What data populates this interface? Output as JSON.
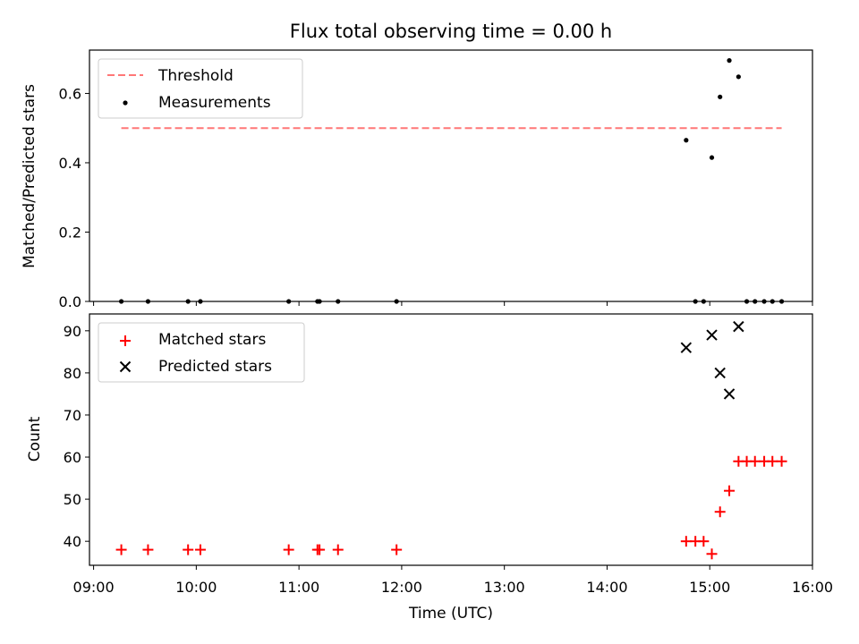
{
  "chart_data": {
    "type": "scatter",
    "title": "Flux total observing time = 0.00 h",
    "xlabel": "Time (UTC)",
    "x_ticks": [
      "09:00",
      "10:00",
      "11:00",
      "12:00",
      "13:00",
      "14:00",
      "15:00",
      "16:00"
    ],
    "x_range_hours": [
      8.96,
      16.0
    ],
    "panels": [
      {
        "ylabel": "Matched/Predicted stars",
        "ylim": [
          0.0,
          0.725
        ],
        "y_ticks": [
          "0.0",
          "0.2",
          "0.4",
          "0.6"
        ],
        "legend_position": "upper left",
        "threshold": {
          "name": "Threshold",
          "value": 0.5,
          "x_range": [
            9.27,
            15.7
          ],
          "color": "#ff7777"
        },
        "series": [
          {
            "name": "Measurements",
            "marker": "dot",
            "color": "#000000",
            "x": [
              9.27,
              9.53,
              9.92,
              10.04,
              10.9,
              11.18,
              11.2,
              11.38,
              11.95,
              14.77,
              14.86,
              14.94,
              15.02,
              15.1,
              15.19,
              15.28,
              15.36,
              15.44,
              15.53,
              15.61,
              15.7
            ],
            "y": [
              0.0,
              0.0,
              0.0,
              0.0,
              0.0,
              0.0,
              0.0,
              0.0,
              0.0,
              0.465,
              0.0,
              0.0,
              0.415,
              0.59,
              0.695,
              0.648,
              0.0,
              0.0,
              0.0,
              0.0,
              0.0
            ]
          }
        ]
      },
      {
        "ylabel": "Count",
        "ylim": [
          34.3,
          94.0
        ],
        "y_ticks": [
          "40",
          "50",
          "60",
          "70",
          "80",
          "90"
        ],
        "legend_position": "upper left",
        "series": [
          {
            "name": "Matched stars",
            "marker": "plus",
            "color": "#ff0000",
            "x": [
              9.27,
              9.53,
              9.92,
              10.04,
              10.9,
              11.18,
              11.2,
              11.38,
              11.95,
              14.77,
              14.86,
              14.94,
              15.02,
              15.1,
              15.19,
              15.28,
              15.36,
              15.44,
              15.53,
              15.61,
              15.7
            ],
            "y": [
              38,
              38,
              38,
              38,
              38,
              38,
              38,
              38,
              38,
              40,
              40,
              40,
              37,
              47,
              52,
              59,
              59,
              59,
              59,
              59,
              59
            ]
          },
          {
            "name": "Predicted stars",
            "marker": "x",
            "color": "#000000",
            "x": [
              14.77,
              15.02,
              15.1,
              15.19,
              15.28
            ],
            "y": [
              86,
              89,
              80,
              75,
              91
            ]
          }
        ]
      }
    ]
  }
}
